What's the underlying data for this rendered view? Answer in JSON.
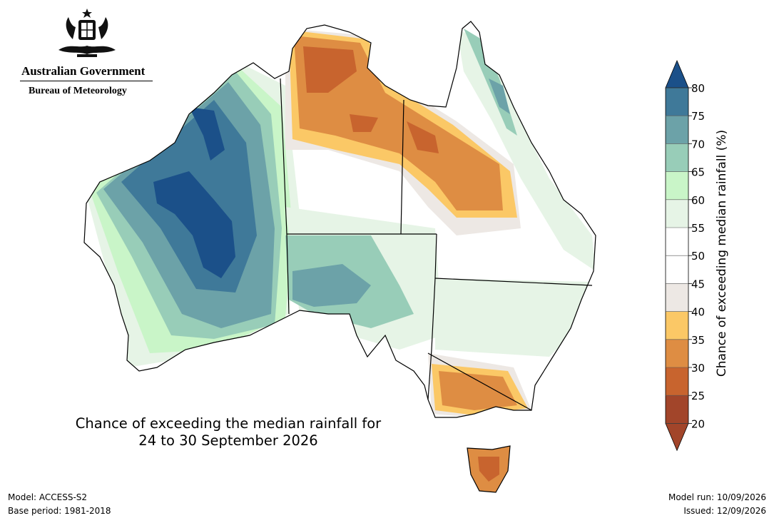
{
  "header": {
    "government": "Australian Government",
    "agency": "Bureau of Meteorology",
    "crest": "coat-of-arms-emblem"
  },
  "map": {
    "title_line1": "Chance of exceeding the median rainfall for",
    "title_line2": "24 to 30 September 2026",
    "colors": {
      "20-25": "#a2452a",
      "25-30": "#c8642e",
      "30-35": "#de8d43",
      "35-40": "#fbc866",
      "40-45": "#ede8e4",
      "45-55": "#ffffff",
      "55-60": "#e6f4e6",
      "60-65": "#c9f5c8",
      "65-70": "#98cdb8",
      "70-75": "#6ca2a8",
      "75-80": "#3f7999",
      "80+": "#1b5089"
    }
  },
  "legend": {
    "label": "Chance of exceeding median rainfall (%)",
    "ticks": [
      "80",
      "75",
      "70",
      "65",
      "60",
      "55",
      "50",
      "45",
      "40",
      "35",
      "30",
      "25",
      "20"
    ],
    "colors_top_to_bottom": [
      "#1b5089",
      "#3f7999",
      "#6ca2a8",
      "#98cdb8",
      "#c9f5c8",
      "#e6f4e6",
      "#ffffff",
      "#ffffff",
      "#ede8e4",
      "#fbc866",
      "#de8d43",
      "#c8642e",
      "#a2452a",
      "#a2452a"
    ]
  },
  "footer": {
    "model": "Model: ACCESS-S2",
    "base_period": "Base period: 1981-2018",
    "model_run": "Model run: 10/09/2026",
    "issued": "Issued: 12/09/2026"
  }
}
